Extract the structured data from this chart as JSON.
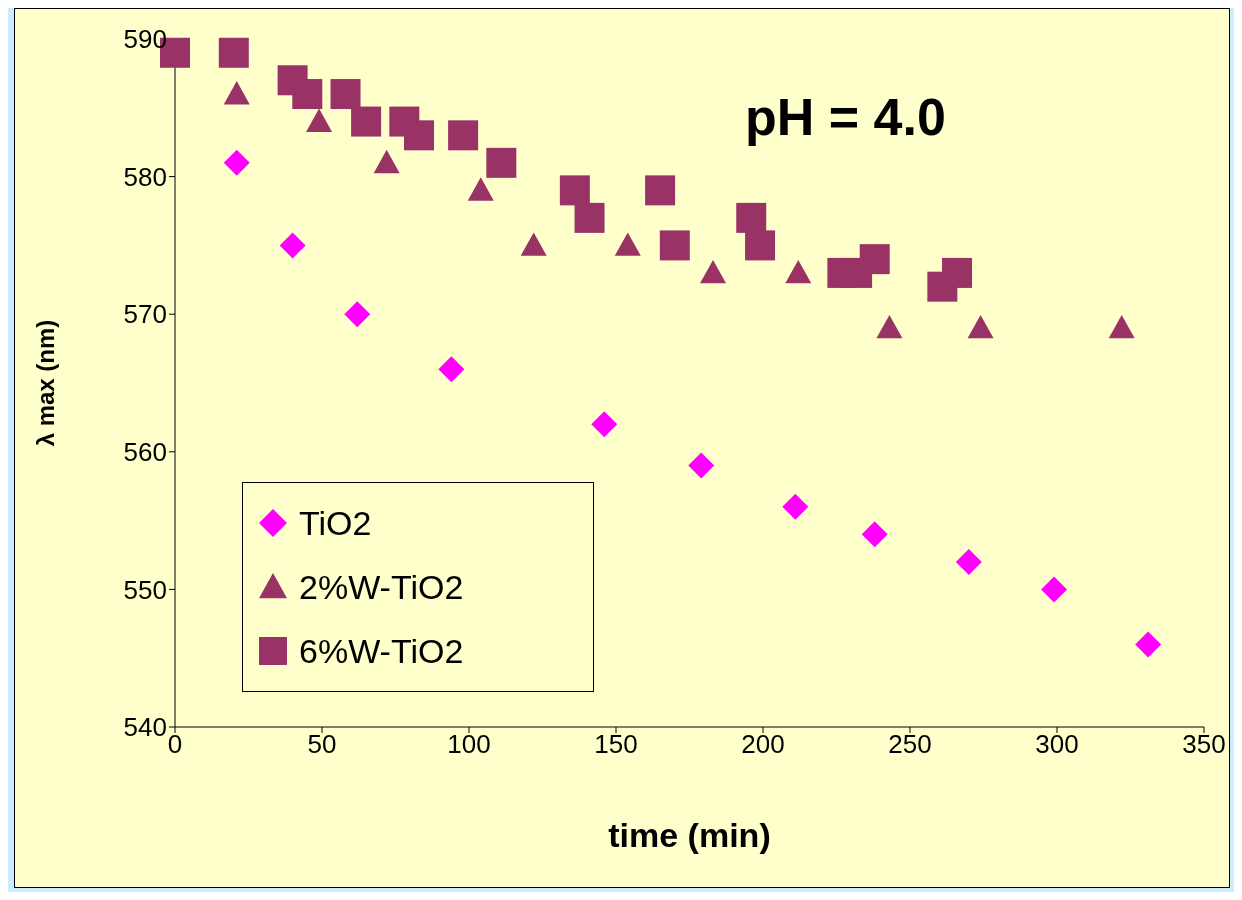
{
  "chart_data": {
    "type": "scatter",
    "xlabel": "time (min)",
    "ylabel": "λ max (nm)",
    "xlim": [
      0,
      350
    ],
    "xticks": [
      0,
      50,
      100,
      150,
      200,
      250,
      300,
      350
    ],
    "ylim": [
      540,
      590
    ],
    "yticks": [
      540,
      550,
      560,
      570,
      580,
      590
    ],
    "grid": false,
    "legend": "bottom left",
    "annotations": [
      "pH = 4.0"
    ],
    "series": [
      {
        "name": "TiO2",
        "color": "#ff00ff",
        "marker": "diamond",
        "x": [
          21,
          40,
          62,
          94,
          146,
          179,
          211,
          238,
          270,
          299,
          331
        ],
        "values": [
          581,
          575,
          570,
          566,
          562,
          559,
          556,
          554,
          552,
          550,
          546
        ]
      },
      {
        "name": "2%W-TiO2",
        "color": "#993366",
        "marker": "triangle",
        "x": [
          21,
          49,
          72,
          104,
          122,
          154,
          183,
          212,
          243,
          274,
          322
        ],
        "values": [
          586,
          584,
          581,
          579,
          575,
          575,
          573,
          573,
          569,
          569,
          569
        ]
      },
      {
        "name": "6%W-TiO2",
        "color": "#993366",
        "marker": "square",
        "x": [
          0,
          20,
          40,
          45,
          58,
          65,
          78,
          83,
          98,
          111,
          136,
          141,
          165,
          170,
          196,
          199,
          227,
          232,
          238,
          261,
          266
        ],
        "values": [
          589,
          589,
          587,
          586,
          586,
          584,
          584,
          583,
          583,
          581,
          579,
          577,
          579,
          575,
          577,
          575,
          573,
          573,
          574,
          572,
          573
        ]
      }
    ]
  }
}
